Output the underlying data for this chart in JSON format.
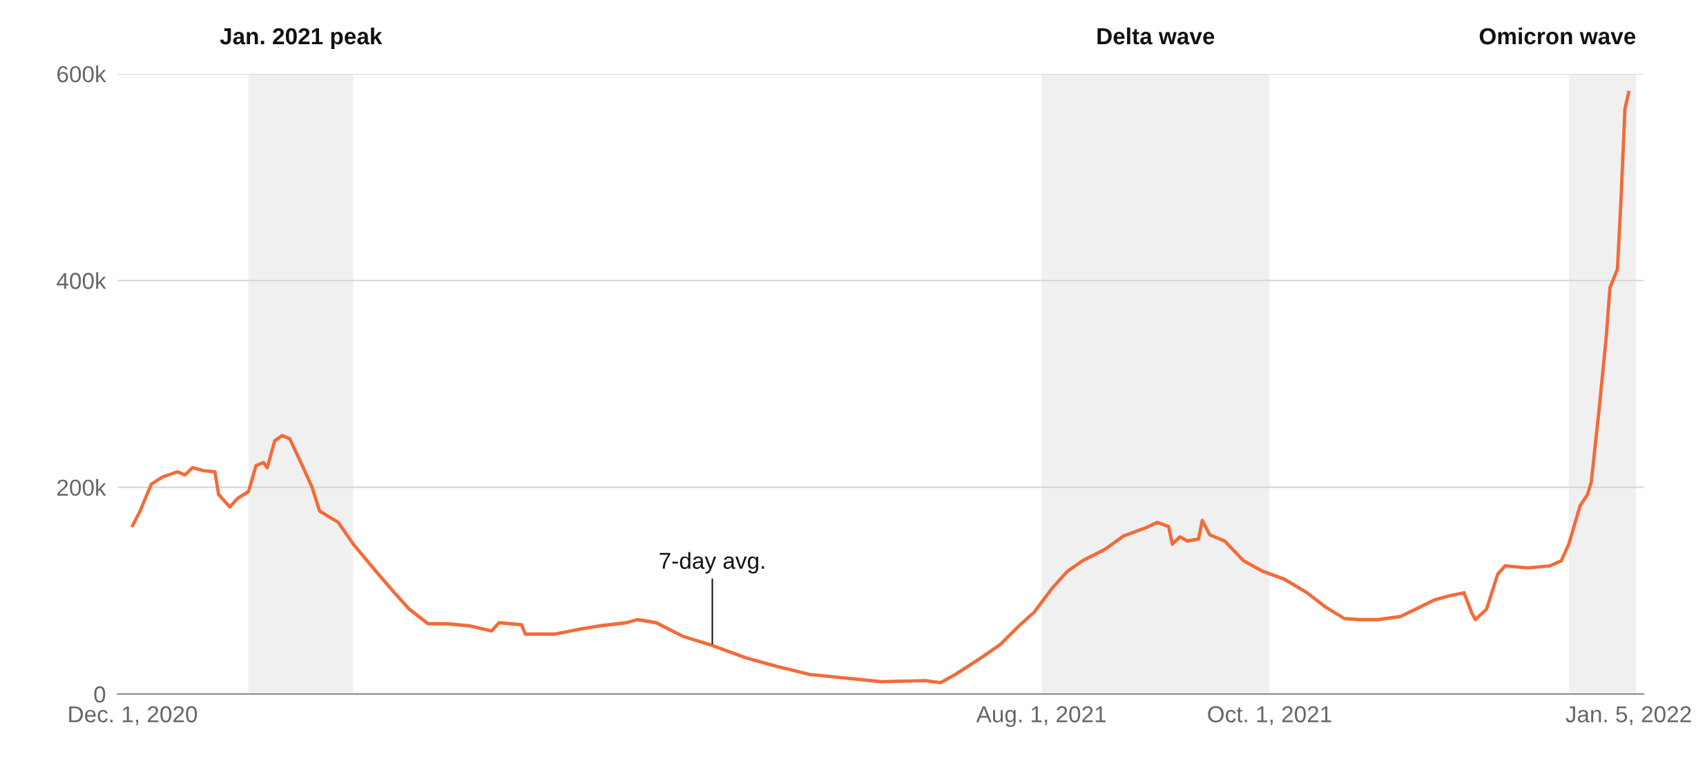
{
  "chart_data": {
    "type": "line",
    "x": [
      "2020-12-01",
      "2020-12-03",
      "2020-12-06",
      "2020-12-09",
      "2020-12-13",
      "2020-12-15",
      "2020-12-17",
      "2020-12-20",
      "2020-12-23",
      "2020-12-24",
      "2020-12-27",
      "2020-12-29",
      "2021-01-01",
      "2021-01-03",
      "2021-01-05",
      "2021-01-06",
      "2021-01-08",
      "2021-01-10",
      "2021-01-12",
      "2021-01-15",
      "2021-01-18",
      "2021-01-20",
      "2021-01-25",
      "2021-01-29",
      "2021-02-04",
      "2021-02-09",
      "2021-02-13",
      "2021-02-18",
      "2021-02-23",
      "2021-03-01",
      "2021-03-07",
      "2021-03-09",
      "2021-03-15",
      "2021-03-16",
      "2021-03-24",
      "2021-03-31",
      "2021-04-05",
      "2021-04-12",
      "2021-04-15",
      "2021-04-20",
      "2021-04-27",
      "2021-05-05",
      "2021-05-14",
      "2021-05-22",
      "2021-05-31",
      "2021-06-11",
      "2021-06-19",
      "2021-07-01",
      "2021-07-05",
      "2021-07-09",
      "2021-07-15",
      "2021-07-21",
      "2021-07-26",
      "2021-07-30",
      "2021-08-04",
      "2021-08-08",
      "2021-08-12",
      "2021-08-18",
      "2021-08-23",
      "2021-08-29",
      "2021-09-01",
      "2021-09-04",
      "2021-09-05",
      "2021-09-07",
      "2021-09-09",
      "2021-09-12",
      "2021-09-13",
      "2021-09-15",
      "2021-09-19",
      "2021-09-24",
      "2021-09-29",
      "2021-10-05",
      "2021-10-11",
      "2021-10-16",
      "2021-10-21",
      "2021-10-25",
      "2021-10-30",
      "2021-11-05",
      "2021-11-09",
      "2021-11-14",
      "2021-11-18",
      "2021-11-22",
      "2021-11-24",
      "2021-11-25",
      "2021-11-28",
      "2021-12-01",
      "2021-12-03",
      "2021-12-09",
      "2021-12-15",
      "2021-12-18",
      "2021-12-20",
      "2021-12-23",
      "2021-12-25",
      "2021-12-26",
      "2021-12-28",
      "2021-12-30",
      "2021-12-31",
      "2022-01-02",
      "2022-01-03",
      "2022-01-04",
      "2022-01-05"
    ],
    "series": [
      {
        "color": "#f26b3a",
        "values": [
          163000,
          177000,
          203000,
          210000,
          215000,
          212000,
          219000,
          216000,
          215000,
          193000,
          181000,
          189000,
          196000,
          221000,
          224000,
          219000,
          245000,
          250000,
          247000,
          224000,
          200000,
          177000,
          166000,
          145000,
          119000,
          98000,
          82000,
          68000,
          68000,
          66000,
          61000,
          69000,
          67000,
          58000,
          58000,
          63000,
          66000,
          69000,
          72000,
          69000,
          56000,
          47000,
          35000,
          27000,
          19000,
          15000,
          12000,
          13000,
          11000,
          19000,
          33000,
          48000,
          66000,
          79000,
          103000,
          119000,
          129000,
          140000,
          153000,
          161000,
          166000,
          162000,
          145000,
          152000,
          148000,
          150000,
          168000,
          154000,
          148000,
          129000,
          119000,
          111000,
          98000,
          84000,
          73000,
          72000,
          72000,
          75000,
          82000,
          91000,
          95000,
          98000,
          79000,
          72000,
          82000,
          116000,
          124000,
          122000,
          124000,
          129000,
          145000,
          182000,
          193000,
          205000,
          272000,
          345000,
          393000,
          411000,
          482000,
          566000,
          582000
        ]
      }
    ],
    "xlim": [
      "2020-11-27",
      "2022-01-09"
    ],
    "xticks": [
      {
        "value": "2020-12-01",
        "label": "Dec. 1, 2020"
      },
      {
        "value": "2021-08-01",
        "label": "Aug. 1, 2021"
      },
      {
        "value": "2021-10-01",
        "label": "Oct. 1, 2021"
      },
      {
        "value": "2022-01-05",
        "label": "Jan. 5, 2022"
      }
    ],
    "ylim": [
      0,
      600000
    ],
    "yticks": [
      {
        "value": 0,
        "label": "0"
      },
      {
        "value": 200000,
        "label": "200k"
      },
      {
        "value": 400000,
        "label": "400k"
      },
      {
        "value": 600000,
        "label": "600k"
      }
    ],
    "grid": "y",
    "bands": [
      {
        "axis": "x",
        "from": "2021-01-01",
        "to": "2021-01-29",
        "label": "Jan. 2021 peak",
        "color": "#f0f0f0"
      },
      {
        "axis": "x",
        "from": "2021-08-01",
        "to": "2021-10-01",
        "label": "Delta wave",
        "color": "#f0f0f0"
      },
      {
        "axis": "x",
        "from": "2021-12-20",
        "to": "2022-01-07",
        "label": "Omicron wave",
        "color": "#f0f0f0"
      }
    ],
    "annotations": [
      {
        "text": "7-day avg.",
        "x": "2021-05-05",
        "y": 47000
      }
    ]
  }
}
